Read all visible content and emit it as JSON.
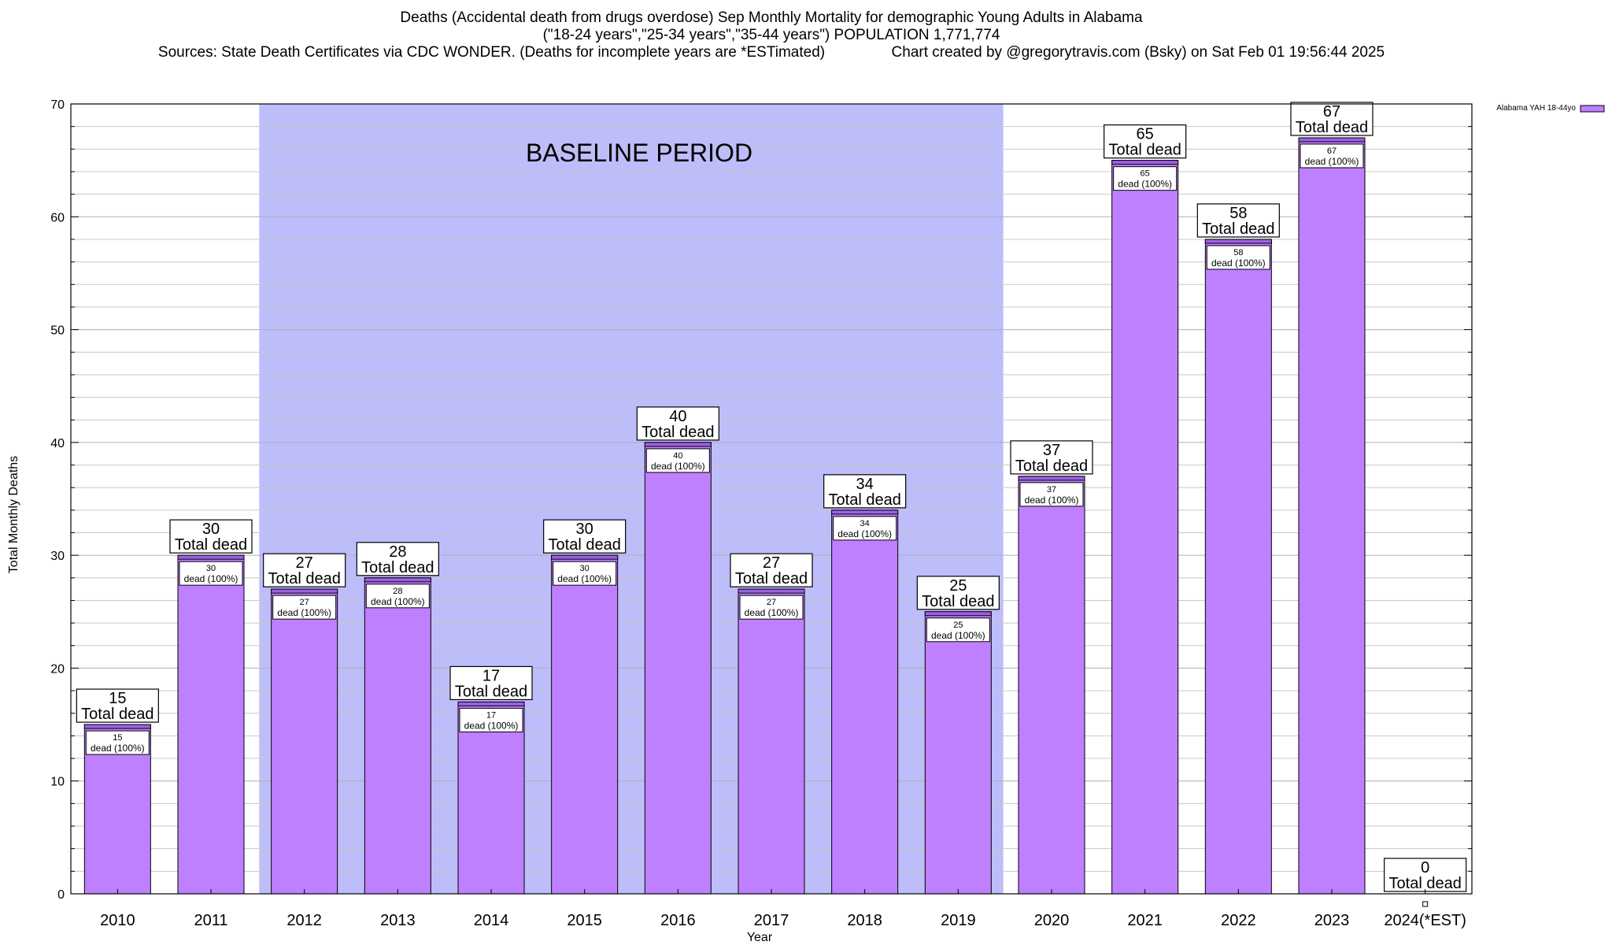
{
  "title_lines": [
    "Deaths (Accidental death from drugs overdose) Sep Monthly Mortality for demographic Young Adults in Alabama",
    "(\"18-24 years\",\"25-34 years\",\"35-44 years\") POPULATION 1,771,774",
    "Sources: State Death Certificates via CDC WONDER. (Deaths for incomplete years are *ESTimated)                Chart created by @gregorytravis.com (Bsky) on Sat Feb 01 19:56:44 2025"
  ],
  "colors": {
    "bar_fill": "#bf80ff",
    "bar_cap": "#9f5fe8",
    "baseline_band": "#bdbdfa",
    "grid": "#c8c8c8"
  },
  "chart_data": {
    "type": "bar",
    "xlabel": "Year",
    "ylabel": "Total Monthly Deaths",
    "ylim": [
      0,
      70
    ],
    "yticks": [
      0,
      10,
      20,
      30,
      40,
      50,
      60,
      70
    ],
    "grid": true,
    "legend": {
      "position": "top-right",
      "entries": [
        "Alabama YAH 18-44yo"
      ]
    },
    "categories": [
      "2010",
      "2011",
      "2012",
      "2013",
      "2014",
      "2015",
      "2016",
      "2017",
      "2018",
      "2019",
      "2020",
      "2021",
      "2022",
      "2023",
      "2024(*EST)"
    ],
    "series": [
      {
        "name": "Alabama YAH 18-44yo",
        "values": [
          15,
          30,
          27,
          28,
          17,
          30,
          40,
          27,
          34,
          25,
          37,
          65,
          58,
          67,
          0
        ]
      }
    ],
    "total_label": "Total dead",
    "inner_label": "dead (100%)",
    "annotations": [
      {
        "text": "BASELINE PERIOD",
        "from": "2012",
        "to": "2019"
      }
    ]
  }
}
